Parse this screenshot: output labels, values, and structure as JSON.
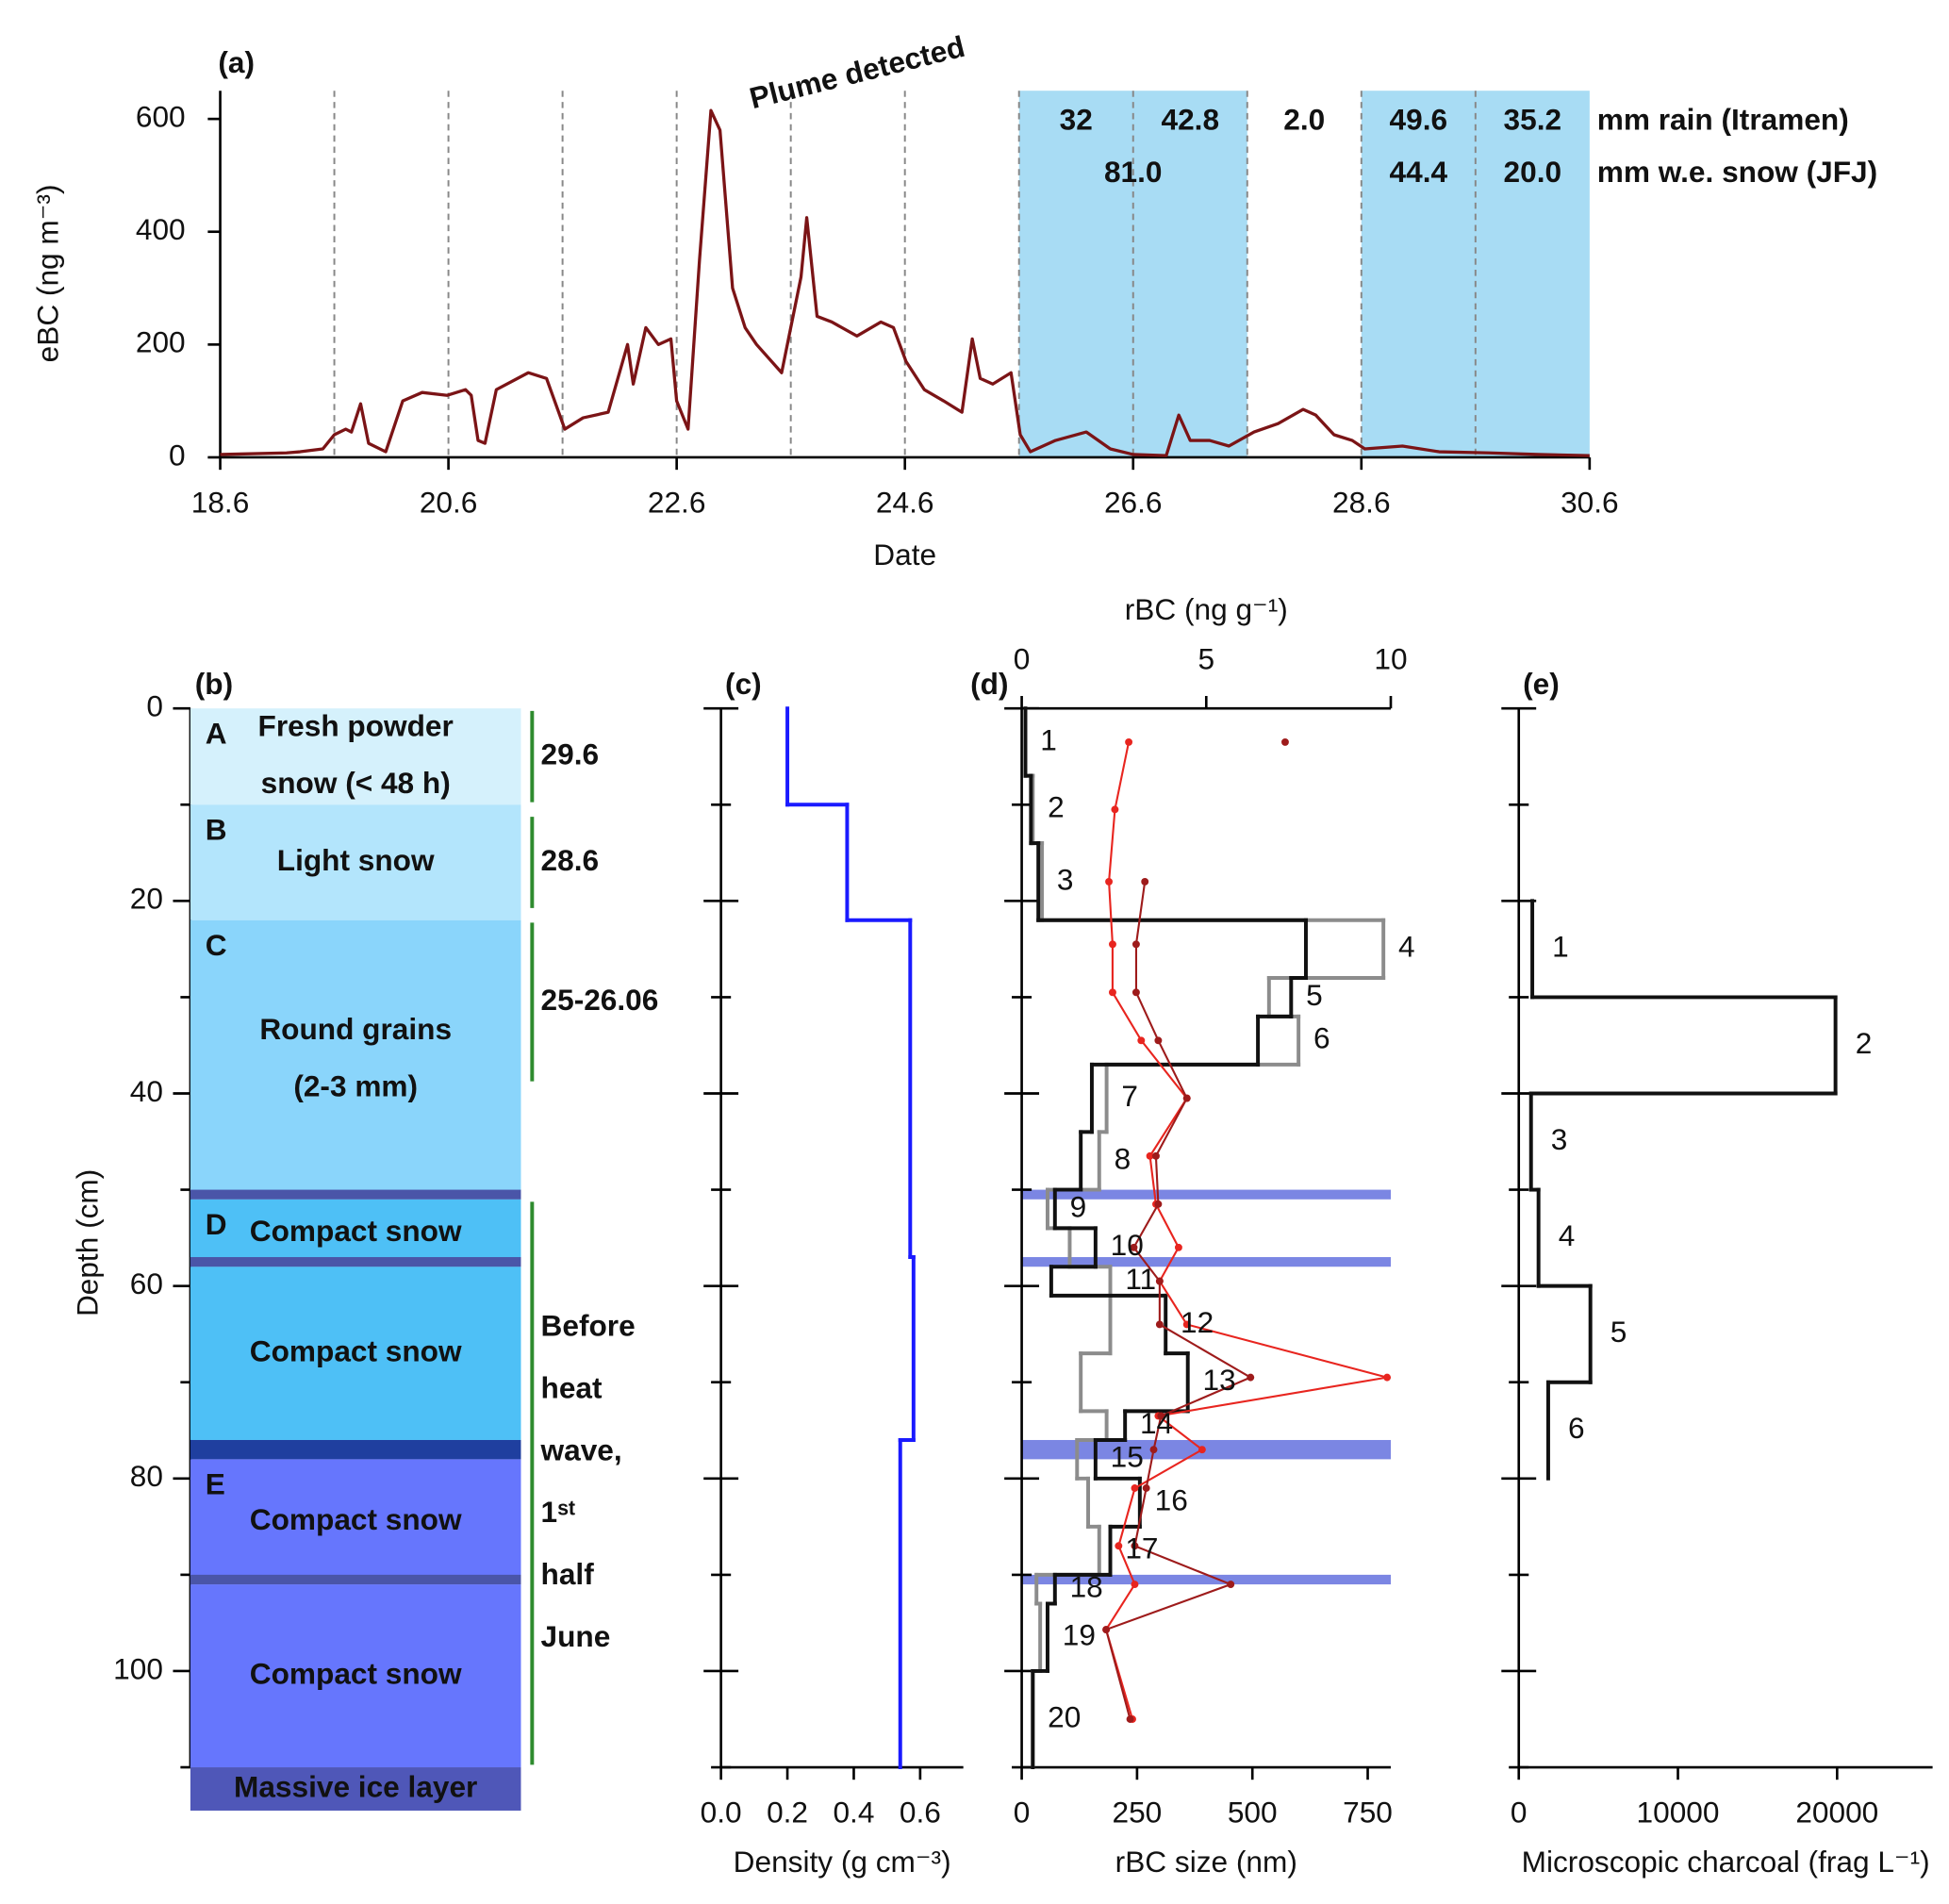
{
  "chart_data": [
    {
      "type": "line",
      "panel_label": "(a)",
      "x_label": "Date",
      "y_label": "eBC (ng m⁻³)",
      "xlim": [
        18,
        30
      ],
      "xticks": [
        {
          "value": 18,
          "label": "18.6"
        },
        {
          "value": 20,
          "label": "20.6"
        },
        {
          "value": 22,
          "label": "22.6"
        },
        {
          "value": 24,
          "label": "24.6"
        },
        {
          "value": 26,
          "label": "26.6"
        },
        {
          "value": 28,
          "label": "28.6"
        },
        {
          "value": 30,
          "label": "30.6"
        }
      ],
      "ylim": [
        0,
        650
      ],
      "yticks": [
        0,
        200,
        400,
        600
      ],
      "vgrid": [
        19,
        20,
        21,
        22,
        23,
        24,
        25,
        26,
        27,
        28,
        29
      ],
      "spans": [
        [
          25,
          27
        ],
        [
          28,
          30
        ]
      ],
      "span_color": "#a8dcf4",
      "annotation": "Plume detected",
      "series": [
        {
          "color": "#7b1416",
          "x": [
            18.0,
            18.58,
            18.7,
            18.9,
            19.0,
            19.1,
            19.15,
            19.23,
            19.3,
            19.45,
            19.6,
            19.77,
            19.99,
            20.15,
            20.2,
            20.26,
            20.32,
            20.42,
            20.7,
            20.86,
            21.02,
            21.18,
            21.4,
            21.57,
            21.62,
            21.73,
            21.84,
            21.95,
            22.0,
            22.1,
            22.2,
            22.3,
            22.38,
            22.49,
            22.6,
            22.7,
            22.92,
            23.09,
            23.14,
            23.23,
            23.36,
            23.58,
            23.79,
            23.9,
            24.01,
            24.17,
            24.34,
            24.5,
            24.59,
            24.66,
            24.77,
            24.93,
            25.01,
            25.1,
            25.32,
            25.59,
            25.8,
            26.0,
            26.29,
            26.4,
            26.5,
            26.67,
            26.84,
            27.06,
            27.27,
            27.49,
            27.6,
            27.76,
            27.92,
            28.03,
            28.36,
            28.68,
            29.12,
            29.55,
            30.0
          ],
          "values": [
            5,
            8,
            10,
            15,
            40,
            50,
            45,
            95,
            25,
            10,
            100,
            115,
            110,
            120,
            110,
            30,
            25,
            120,
            150,
            140,
            50,
            70,
            80,
            200,
            130,
            230,
            200,
            210,
            100,
            50,
            350,
            615,
            580,
            300,
            230,
            200,
            150,
            320,
            425,
            250,
            240,
            215,
            240,
            230,
            170,
            120,
            100,
            80,
            210,
            140,
            130,
            150,
            40,
            10,
            30,
            45,
            15,
            5,
            3,
            75,
            30,
            30,
            20,
            45,
            60,
            85,
            75,
            40,
            30,
            15,
            20,
            10,
            8,
            5,
            3
          ]
        }
      ],
      "rain": {
        "label": "mm rain (Itramen)",
        "color": "#1a237e",
        "x": [
          25.5,
          26.5,
          27.5,
          28.5,
          29.5
        ],
        "values": [
          32,
          42.8,
          2,
          49.6,
          35.2
        ],
        "value_labels": [
          "32",
          "42.8",
          "2.0",
          "49.6",
          "35.2"
        ]
      },
      "snow": {
        "label": "mm w.e. snow (JFJ)",
        "color": "#f5922a",
        "x": [
          26.0,
          28.5,
          29.5
        ],
        "values": [
          81,
          44.4,
          20
        ],
        "value_labels": [
          "81.0",
          "44.4",
          "20.0"
        ]
      }
    },
    {
      "type": "layers",
      "panel_label": "(b)",
      "y_label": "Depth (cm)",
      "ylim": [
        0,
        110
      ],
      "yticks": [
        0,
        20,
        40,
        60,
        80,
        100
      ],
      "yminor": [
        10,
        30,
        50,
        70,
        90,
        110
      ],
      "label_color": "#d32027",
      "period_color": "#2e8b2e",
      "layers": [
        {
          "letter": "A",
          "label": [
            "Fresh powder",
            "snow (< 48 h)"
          ],
          "top": 0,
          "bottom": 10,
          "color": "#d5f1fc"
        },
        {
          "letter": "B",
          "label": [
            "Light snow"
          ],
          "top": 10,
          "bottom": 22,
          "color": "#b3e5fc"
        },
        {
          "letter": "C",
          "label": [
            "Round grains",
            "(2-3 mm)"
          ],
          "top": 22,
          "bottom": 51,
          "color": "#8ad5fb"
        },
        {
          "letter": "D",
          "label": [
            "Compact snow"
          ],
          "top": 51,
          "bottom": 58,
          "color": "#4ec0f6"
        },
        {
          "label": [
            "Compact snow"
          ],
          "top": 58,
          "bottom": 76,
          "color": "#4ec0f6"
        },
        {
          "letter": "E",
          "label": [
            "Compact snow"
          ],
          "top": 78,
          "bottom": 91,
          "color": "#6676fd"
        },
        {
          "label": [
            "Compact snow"
          ],
          "top": 91,
          "bottom": 110,
          "color": "#6676fd"
        },
        {
          "label": [
            "Massive ice layer"
          ],
          "top": 110,
          "bottom": 114.5,
          "color": "#4f57b8"
        }
      ],
      "boundaries": [
        {
          "top": 50,
          "bottom": 51,
          "color": "#4a55a8"
        },
        {
          "top": 57,
          "bottom": 58,
          "color": "#4a55a8"
        },
        {
          "top": 76,
          "bottom": 78,
          "color": "#1f3f9f"
        },
        {
          "top": 90,
          "bottom": 91,
          "color": "#4a55a8"
        }
      ],
      "periods": [
        {
          "label": [
            "29.6"
          ],
          "top": 0,
          "bottom": 10
        },
        {
          "label": [
            "28.6"
          ],
          "top": 11,
          "bottom": 21
        },
        {
          "label": [
            "25-26.06"
          ],
          "top": 22,
          "bottom": 39
        },
        {
          "label": [
            "Before",
            "heat",
            "wave,",
            "1ˢᵗ",
            "half",
            "June"
          ],
          "top": 51,
          "bottom": 110
        }
      ]
    },
    {
      "type": "step",
      "panel_label": "(c)",
      "x_label": "Density (g cm⁻³)",
      "color": "#1a1aff",
      "xlim": [
        0,
        0.73
      ],
      "xticks": [
        {
          "value": 0,
          "label": "0.0"
        },
        {
          "value": 0.2,
          "label": "0.2"
        },
        {
          "value": 0.4,
          "label": "0.4"
        },
        {
          "value": 0.6,
          "label": "0.6"
        }
      ],
      "ylim": [
        0,
        110
      ],
      "yticks": [
        0,
        20,
        40,
        60,
        80,
        100
      ],
      "yminor": [
        10,
        30,
        50,
        70,
        90,
        110
      ],
      "depth_edges": [
        0,
        10,
        22,
        57,
        76,
        110
      ],
      "values": [
        0.2,
        0.38,
        0.57,
        0.58,
        0.54
      ]
    },
    {
      "type": "profile",
      "panel_label": "(d)",
      "x_label": "rBC size (nm)",
      "x2_label": "rBC (ng g⁻¹)",
      "xlim": [
        0,
        800
      ],
      "xticks": [
        0,
        250,
        500,
        750
      ],
      "x2lim": [
        0,
        10
      ],
      "x2ticks": [
        0,
        5,
        10
      ],
      "ylim": [
        0,
        110
      ],
      "yticks": [
        0,
        20,
        40,
        60,
        80,
        100
      ],
      "yminor": [
        10,
        30,
        50,
        70,
        90,
        110
      ],
      "band_color": "#7b86e3",
      "bands": [
        {
          "top": 50,
          "bottom": 51
        },
        {
          "top": 57,
          "bottom": 58
        },
        {
          "top": 76,
          "bottom": 78
        },
        {
          "top": 90,
          "bottom": 91
        }
      ],
      "samples": [
        1,
        2,
        3,
        4,
        5,
        6,
        7,
        8,
        9,
        10,
        11,
        12,
        13,
        14,
        15,
        16,
        17,
        18,
        19,
        20
      ],
      "depth_edges": [
        0,
        7,
        14,
        22,
        28,
        32,
        37,
        44,
        50,
        54,
        58,
        61,
        67,
        73,
        76,
        80,
        85,
        90,
        93,
        100,
        110
      ],
      "series": [
        {
          "color": "#8c8c8c",
          "axis": "x2",
          "values": [
            0.1,
            0.3,
            0.55,
            9.8,
            6.7,
            7.5,
            2.3,
            2.1,
            0.7,
            1.3,
            2.4,
            2.4,
            1.6,
            2.3,
            1.5,
            1.8,
            2.1,
            0.4,
            0.5,
            0.3
          ]
        },
        {
          "color": "#111111",
          "axis": "x2",
          "values": [
            0.1,
            0.25,
            0.45,
            7.7,
            7.3,
            6.4,
            1.9,
            1.6,
            0.9,
            2.0,
            0.8,
            3.9,
            4.5,
            2.8,
            2.0,
            3.2,
            2.4,
            0.9,
            0.7,
            0.3
          ]
        }
      ],
      "depths": [
        3.5,
        10.5,
        18,
        24.5,
        29.5,
        34.5,
        40.5,
        46.5,
        51.5,
        56,
        59.5,
        64,
        69.5,
        73.5,
        77,
        81,
        87,
        91,
        95.7,
        105
      ],
      "size_series": [
        {
          "color": "#e8251f",
          "values": [
            232,
            202,
            189,
            197,
            197,
            259,
            358,
            278,
            291,
            340,
            299,
            358,
            792,
            296,
            391,
            245,
            210,
            245,
            183,
            240
          ]
        },
        {
          "color": "#9e1b1b",
          "values": [
            571,
            null,
            267,
            248,
            248,
            296,
            358,
            291,
            296,
            243,
            299,
            299,
            496,
            302,
            286,
            270,
            245,
            453,
            183,
            235
          ]
        }
      ]
    },
    {
      "type": "step",
      "panel_label": "(e)",
      "x_label": "Microscopic charcoal (frag L⁻¹)",
      "color": "#111111",
      "xlim": [
        0,
        26000
      ],
      "xticks": [
        0,
        10000,
        20000
      ],
      "ylim": [
        0,
        110
      ],
      "yticks": [
        0,
        20,
        40,
        60,
        80,
        100
      ],
      "yminor": [
        10,
        30,
        50,
        70,
        90,
        110
      ],
      "depth_edges": [
        20,
        30,
        40,
        50,
        60,
        70,
        80
      ],
      "values": [
        850,
        19900,
        770,
        1240,
        4500,
        1850
      ],
      "samples": [
        1,
        2,
        3,
        4,
        5,
        6
      ]
    }
  ]
}
